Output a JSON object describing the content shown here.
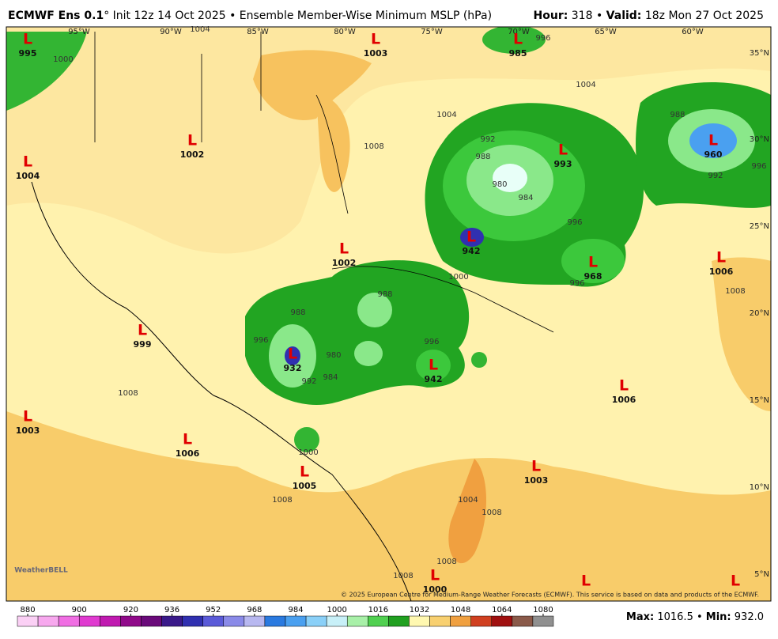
{
  "header": {
    "title_bold": "ECMWF Ens 0.1",
    "title_rest": "° Init 12z 14 Oct 2025 • Ensemble Member-Wise Minimum MSLP (hPa)",
    "hour_label": "Hour:",
    "hour_value": " 318 • ",
    "valid_label": "Valid:",
    "valid_value": " 18z Mon 27 Oct 2025"
  },
  "map": {
    "lon_labels": [
      "95°W",
      "90°W",
      "85°W",
      "80°W",
      "75°W",
      "70°W",
      "65°W",
      "60°W"
    ],
    "lat_labels": [
      "35°N",
      "30°N",
      "25°N",
      "20°N",
      "15°N",
      "10°N",
      "5°N"
    ],
    "lows": [
      {
        "label": "L",
        "value": 995
      },
      {
        "label": "L",
        "value": 1003
      },
      {
        "label": "L",
        "value": 985
      },
      {
        "label": "L",
        "value": 1002
      },
      {
        "label": "L",
        "value": 1004
      },
      {
        "label": "L",
        "value": 993
      },
      {
        "label": "L",
        "value": 960
      },
      {
        "label": "L",
        "value": 942
      },
      {
        "label": "L",
        "value": 1002
      },
      {
        "label": "L",
        "value": 968
      },
      {
        "label": "L",
        "value": 1006
      },
      {
        "label": "L",
        "value": 999
      },
      {
        "label": "L",
        "value": 932
      },
      {
        "label": "L",
        "value": 942
      },
      {
        "label": "L",
        "value": 1006
      },
      {
        "label": "L",
        "value": 1003
      },
      {
        "label": "L",
        "value": 1006
      },
      {
        "label": "L",
        "value": 1005
      },
      {
        "label": "L",
        "value": 1003
      },
      {
        "label": "L",
        "value": 1000
      },
      {
        "label": "L"
      },
      {
        "label": "L"
      }
    ],
    "contour_labels": [
      "1004",
      "1004",
      "1004",
      "1008",
      "1000",
      "996",
      "992",
      "988",
      "980",
      "984",
      "996",
      "1000",
      "996",
      "992",
      "996",
      "988",
      "1008",
      "1008",
      "1000",
      "1008",
      "1004",
      "1008",
      "1008",
      "1008",
      "996",
      "988",
      "996",
      "992",
      "984",
      "980",
      "988"
    ],
    "credit": "© 2025 European Centre for Medium-Range Weather Forecasts (ECMWF). This service is based on data and products of the ECMWF.",
    "logo": "WeatherBELL"
  },
  "colorbar": {
    "lim": [
      876,
      1084
    ],
    "ticks": [
      880,
      900,
      920,
      936,
      952,
      968,
      984,
      1000,
      1016,
      1032,
      1048,
      1064,
      1080
    ],
    "colors": [
      "#fbd0f5",
      "#f7a8ee",
      "#f06ee3",
      "#e03ad0",
      "#c01ab0",
      "#900a8a",
      "#6a0a7a",
      "#3a1a8a",
      "#3030b0",
      "#5a5ad8",
      "#8a8ae8",
      "#b8b8f0",
      "#2a7ae0",
      "#4aa0f0",
      "#8ad0f8",
      "#c8f0f8",
      "#a8f0a8",
      "#50d050",
      "#20a020",
      "#fff8b0",
      "#f8d070",
      "#f0a040",
      "#d04020",
      "#a01010",
      "#8a5a4a",
      "#909090"
    ]
  },
  "footer": {
    "max_label": "Max:",
    "max_value": " 1016.5 • ",
    "min_label": "Min:",
    "min_value": " 932.0"
  }
}
